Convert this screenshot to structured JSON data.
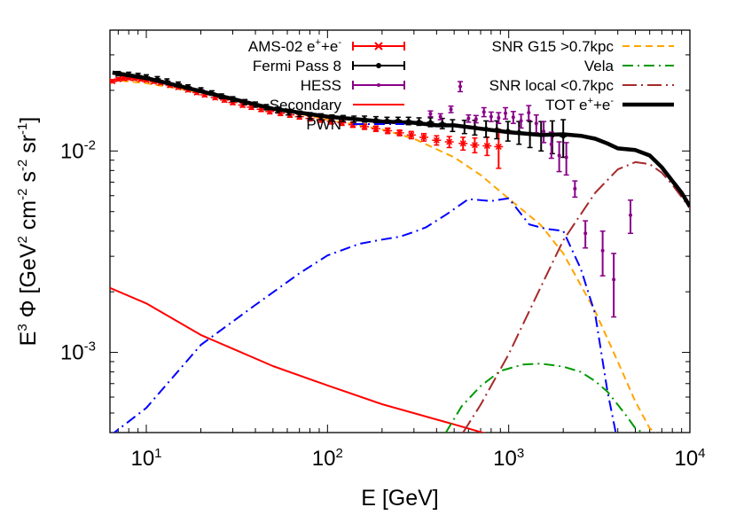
{
  "chart_data": {
    "type": "line",
    "xscale": "log",
    "yscale": "log",
    "xlim": [
      6.3,
      10000
    ],
    "ylim": [
      0.0004,
      0.0398
    ],
    "grid": false,
    "legend_position": "top",
    "x_ticks": [
      {
        "value": 10,
        "base": "10",
        "exp": "1"
      },
      {
        "value": 100,
        "base": "10",
        "exp": "2"
      },
      {
        "value": 1000,
        "base": "10",
        "exp": "3"
      },
      {
        "value": 10000,
        "base": "10",
        "exp": "4"
      }
    ],
    "y_ticks": [
      {
        "value": 0.01,
        "base": "10",
        "exp": "-2"
      },
      {
        "value": 0.001,
        "base": "10",
        "exp": "-3"
      }
    ],
    "xlabel": "E [GeV]",
    "ylabel": {
      "parts": [
        {
          "t": "E",
          "s": 0
        },
        {
          "t": "3",
          "s": 1
        },
        {
          "t": " Φ [GeV",
          "s": 0
        },
        {
          "t": "2",
          "s": 1
        },
        {
          "t": " cm",
          "s": 0
        },
        {
          "t": "-2",
          "s": 1
        },
        {
          "t": " s",
          "s": 0
        },
        {
          "t": "-2",
          "s": 1
        },
        {
          "t": " sr",
          "s": 0
        },
        {
          "t": "-1",
          "s": 1
        },
        {
          "t": "]",
          "s": 0
        }
      ]
    },
    "series": [
      {
        "name": "AMS-02 e⁺+e⁻",
        "color": "#ff0000",
        "style": "points-cross-errorbars",
        "x": [
          6.5,
          7,
          7.5,
          8,
          8.6,
          9.3,
          10,
          11,
          12,
          13.5,
          15,
          17,
          19,
          21,
          24,
          27,
          30,
          34,
          38,
          43,
          48,
          55,
          62,
          70,
          80,
          92,
          105,
          120,
          138,
          160,
          185,
          215,
          250,
          290,
          340,
          400,
          470,
          560,
          650,
          760,
          880
        ],
        "y": [
          0.0222,
          0.0227,
          0.0229,
          0.023,
          0.0229,
          0.0227,
          0.0225,
          0.0221,
          0.0218,
          0.0212,
          0.0207,
          0.0201,
          0.0195,
          0.019,
          0.0184,
          0.0179,
          0.0174,
          0.0169,
          0.0165,
          0.0161,
          0.0157,
          0.0154,
          0.0151,
          0.0148,
          0.0145,
          0.0143,
          0.014,
          0.0138,
          0.0135,
          0.0132,
          0.0129,
          0.0126,
          0.0123,
          0.012,
          0.0117,
          0.0113,
          0.0111,
          0.0109,
          0.0107,
          0.0106,
          0.0105
        ],
        "yerr": [
          0.0004,
          0.0004,
          0.0004,
          0.0004,
          0.0004,
          0.0004,
          0.0004,
          0.0004,
          0.0004,
          0.0004,
          0.0004,
          0.0004,
          0.0004,
          0.0004,
          0.0004,
          0.0004,
          0.0004,
          0.0004,
          0.0004,
          0.0004,
          0.0004,
          0.0004,
          0.0004,
          0.0004,
          0.0004,
          0.0004,
          0.0004,
          0.0004,
          0.0004,
          0.0004,
          0.0004,
          0.0004,
          0.0004,
          0.0005,
          0.0005,
          0.0006,
          0.0007,
          0.0008,
          0.0009,
          0.0011,
          0.0023
        ]
      },
      {
        "name": "Fermi Pass 8",
        "color": "#000000",
        "style": "points-dot-errorbars",
        "x": [
          7,
          8,
          9,
          10,
          11.5,
          13,
          15,
          17,
          20,
          23,
          26,
          30,
          35,
          40,
          46,
          53,
          61,
          70,
          80,
          92,
          106,
          122,
          140,
          160,
          185,
          213,
          245,
          280,
          320,
          370,
          430,
          490,
          570,
          650,
          750,
          860,
          990,
          1140,
          1310,
          1510,
          1740,
          2000
        ],
        "y": [
          0.0242,
          0.024,
          0.0237,
          0.0233,
          0.0228,
          0.0222,
          0.0215,
          0.0208,
          0.0201,
          0.0194,
          0.0187,
          0.0181,
          0.0175,
          0.017,
          0.0165,
          0.016,
          0.0156,
          0.0153,
          0.015,
          0.0148,
          0.0146,
          0.0145,
          0.0144,
          0.0144,
          0.0143,
          0.0142,
          0.0142,
          0.0141,
          0.014,
          0.0139,
          0.0137,
          0.0134,
          0.0132,
          0.0131,
          0.0129,
          0.0128,
          0.0126,
          0.0124,
          0.0122,
          0.012,
          0.0119,
          0.0118
        ],
        "yerr": [
          0.0006,
          0.0006,
          0.0006,
          0.0006,
          0.0006,
          0.0006,
          0.0005,
          0.0005,
          0.0005,
          0.0005,
          0.0005,
          0.0005,
          0.0005,
          0.0005,
          0.0005,
          0.0005,
          0.0005,
          0.0005,
          0.0005,
          0.0005,
          0.0005,
          0.0005,
          0.0005,
          0.0005,
          0.0005,
          0.0005,
          0.0005,
          0.0006,
          0.0006,
          0.0007,
          0.0008,
          0.0009,
          0.001,
          0.0011,
          0.0012,
          0.0013,
          0.0014,
          0.0016,
          0.0018,
          0.002,
          0.0022,
          0.0025
        ]
      },
      {
        "name": "HESS",
        "color": "#880088",
        "style": "points-errorbars",
        "x": [
          370,
          420,
          480,
          540,
          600,
          660,
          730,
          800,
          880,
          960,
          1060,
          1170,
          1290,
          1420,
          1560,
          1720,
          1900,
          2080,
          2320,
          2650,
          3300,
          3800,
          4700
        ],
        "y": [
          0.0153,
          0.0148,
          0.0161,
          0.0209,
          0.0145,
          0.0144,
          0.0156,
          0.0148,
          0.0146,
          0.0154,
          0.0147,
          0.0141,
          0.0155,
          0.0137,
          0.0125,
          0.0108,
          0.0095,
          0.0093,
          0.0065,
          0.0039,
          0.0032,
          0.0023,
          0.0048
        ],
        "yerr": [
          0.0005,
          0.0005,
          0.0006,
          0.0012,
          0.0006,
          0.0006,
          0.0008,
          0.0008,
          0.0009,
          0.001,
          0.001,
          0.0011,
          0.0013,
          0.0014,
          0.0015,
          0.0016,
          0.0016,
          0.0017,
          0.0006,
          0.0006,
          0.0008,
          0.0008,
          0.0009
        ]
      },
      {
        "name": "Secondary",
        "color": "#ff0000",
        "style": "solid",
        "x": [
          6.3,
          10,
          20,
          50,
          100,
          200,
          500,
          1000
        ],
        "y": [
          0.00209,
          0.00175,
          0.00122,
          0.000855,
          0.000686,
          0.000553,
          0.000439,
          0.000367
        ]
      },
      {
        "name": "PWN",
        "color": "#0000ff",
        "style": "dash-dot",
        "x": [
          6.3,
          10,
          20,
          40,
          70,
          100,
          150,
          200,
          250,
          300,
          350,
          450,
          600,
          800,
          1000,
          1300,
          1600,
          2000,
          2500,
          3000,
          3500,
          3900
        ],
        "y": [
          0.000385,
          0.00053,
          0.00109,
          0.00172,
          0.00247,
          0.00303,
          0.00346,
          0.00363,
          0.00375,
          0.00396,
          0.00418,
          0.00482,
          0.00577,
          0.00564,
          0.00582,
          0.00432,
          0.00411,
          0.00401,
          0.0026,
          0.00155,
          0.00065,
          0.0004
        ]
      },
      {
        "name": "SNR G15 >0.7kpc",
        "color": "#ffa500",
        "style": "dashed",
        "x": [
          6.3,
          10,
          20,
          50,
          100,
          200,
          300,
          500,
          700,
          1000,
          1500,
          2000,
          3000,
          4000,
          5000,
          6000,
          6500
        ],
        "y": [
          0.0226,
          0.0217,
          0.0195,
          0.0163,
          0.0143,
          0.0128,
          0.0115,
          0.0093,
          0.0076,
          0.0058,
          0.0043,
          0.0031,
          0.0016,
          0.0009,
          0.00057,
          0.00042,
          0.0004
        ]
      },
      {
        "name": "Vela",
        "color": "#009900",
        "style": "dash-dot",
        "x": [
          450,
          550,
          700,
          900,
          1200,
          1500,
          2000,
          2500,
          3000,
          3500,
          4000,
          4500,
          5000,
          5500
        ],
        "y": [
          0.0004,
          0.00054,
          0.00068,
          0.00081,
          0.00087,
          0.00088,
          0.00085,
          0.0008,
          0.00072,
          0.00064,
          0.00055,
          0.00048,
          0.00042,
          0.0004
        ]
      },
      {
        "name": "SNR local <0.7kpc",
        "color": "#a52a2a",
        "style": "long-dash-dot",
        "x": [
          560,
          700,
          1000,
          1500,
          2000,
          3000,
          4000,
          5000,
          6000,
          7000,
          8000,
          9000,
          10000
        ],
        "y": [
          0.0004,
          0.00055,
          0.00098,
          0.0021,
          0.0036,
          0.0062,
          0.0081,
          0.0088,
          0.0086,
          0.0078,
          0.0068,
          0.0059,
          0.0052
        ]
      },
      {
        "name": "TOT e⁺+e⁻",
        "color": "#000000",
        "style": "thick-solid",
        "x": [
          6.5,
          10,
          20,
          50,
          100,
          200,
          300,
          400,
          500,
          700,
          1000,
          1500,
          2000,
          2500,
          3000,
          3500,
          4000,
          5000,
          6000,
          7000,
          8000,
          9000,
          10000
        ],
        "y": [
          0.0245,
          0.023,
          0.0198,
          0.0162,
          0.0148,
          0.014,
          0.0138,
          0.0134,
          0.0134,
          0.0129,
          0.0124,
          0.012,
          0.0121,
          0.0119,
          0.0115,
          0.0109,
          0.0103,
          0.0101,
          0.0095,
          0.0083,
          0.0071,
          0.0062,
          0.0053
        ]
      }
    ],
    "legend": {
      "col1": [
        {
          "text": "AMS-02 e",
          "sup1": "+",
          "mid": "+e",
          "sup2": "-",
          "series": 0
        },
        {
          "text": "Fermi Pass 8",
          "series": 1
        },
        {
          "text": "HESS",
          "series": 2
        },
        {
          "text": "Secondary",
          "series": 3
        },
        {
          "text": "PWN",
          "series": 4
        }
      ],
      "col2": [
        {
          "text": "SNR G15 >0.7kpc",
          "series": 5
        },
        {
          "text": "Vela",
          "series": 6
        },
        {
          "text": "SNR local <0.7kpc",
          "series": 7
        },
        {
          "text": "TOT e",
          "sup1": "+",
          "mid": "+e",
          "sup2": "-",
          "series": 8
        }
      ]
    }
  }
}
